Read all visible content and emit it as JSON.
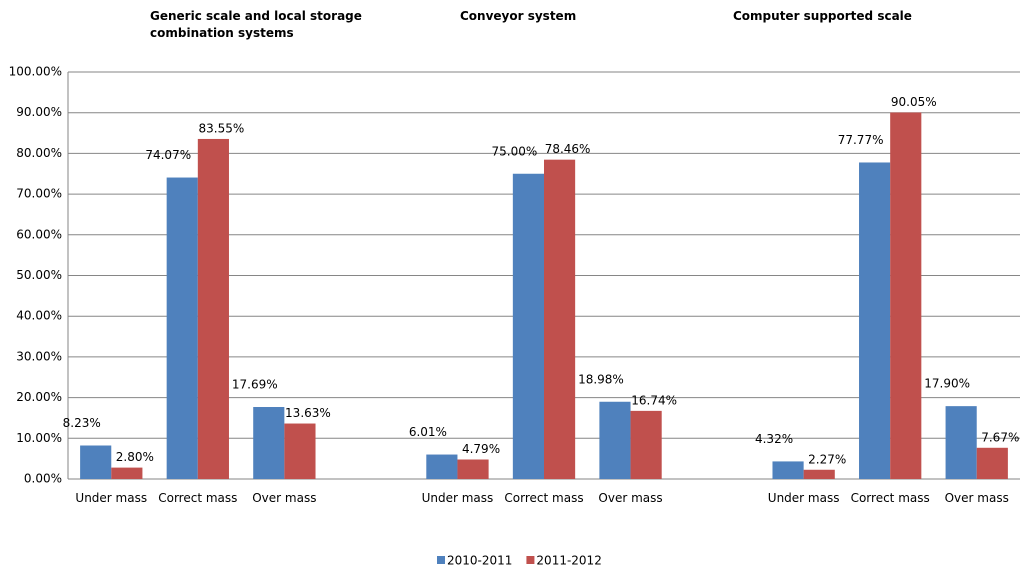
{
  "chart_data": {
    "type": "bar",
    "annotations": [
      "Generic scale and local storage combination systems",
      "Conveyor system",
      "Computer supported scale"
    ],
    "categories": [
      "Under mass",
      "Correct mass",
      "Over mass",
      null,
      "Under mass",
      "Correct mass",
      "Over mass",
      null,
      "Under mass",
      "Correct mass",
      "Over mass"
    ],
    "series": [
      {
        "name": "2010-2011",
        "color": "#4f81bd",
        "values": [
          8.23,
          74.07,
          17.69,
          null,
          6.01,
          75.0,
          18.98,
          null,
          4.32,
          77.77,
          17.9
        ],
        "value_labels": [
          "8.23%",
          "74.07%",
          "17.69%",
          null,
          "6.01%",
          "75.00%",
          "18.98%",
          null,
          "4.32%",
          "77.77%",
          "17.90%"
        ]
      },
      {
        "name": "2011-2012",
        "color": "#c0504d",
        "values": [
          2.8,
          83.55,
          13.63,
          null,
          4.79,
          78.46,
          16.74,
          null,
          2.27,
          90.05,
          7.67
        ],
        "value_labels": [
          "2.80%",
          "83.55%",
          "13.63%",
          null,
          "4.79%",
          "78.46%",
          "16.74%",
          null,
          "2.27%",
          "90.05%",
          "7.67%"
        ]
      }
    ],
    "ylim": [
      0,
      100
    ],
    "yticks": [
      {
        "value": 0,
        "label": "0.00%"
      },
      {
        "value": 10,
        "label": "10.00%"
      },
      {
        "value": 20,
        "label": "20.00%"
      },
      {
        "value": 30,
        "label": "30.00%"
      },
      {
        "value": 40,
        "label": "40.00%"
      },
      {
        "value": 50,
        "label": "50.00%"
      },
      {
        "value": 60,
        "label": "60.00%"
      },
      {
        "value": 70,
        "label": "70.00%"
      },
      {
        "value": 80,
        "label": "80.00%"
      },
      {
        "value": 90,
        "label": "90.00%"
      },
      {
        "value": 100,
        "label": "100.00%"
      }
    ],
    "grid": true,
    "legend": "bottom"
  }
}
